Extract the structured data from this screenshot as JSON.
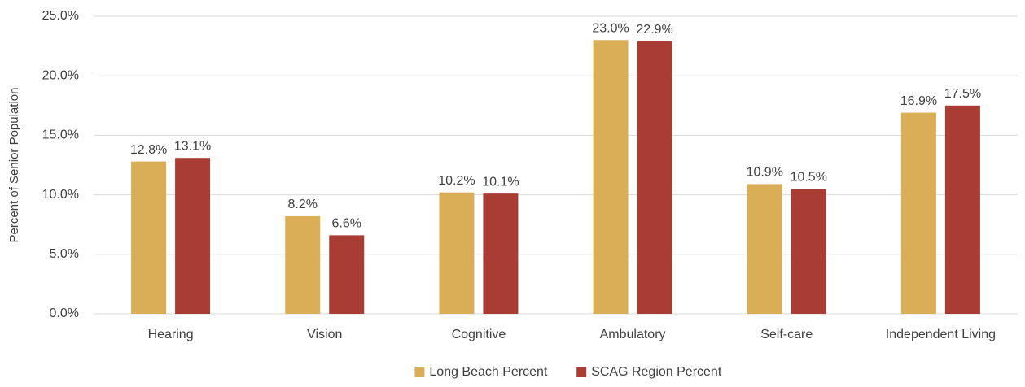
{
  "chart_data": {
    "type": "bar",
    "ylabel": "Percent of Senior Population",
    "categories": [
      "Hearing",
      "Vision",
      "Cognitive",
      "Ambulatory",
      "Self-care",
      "Independent Living"
    ],
    "series": [
      {
        "name": "Long Beach Percent",
        "color": "#d9ae57",
        "values": [
          12.8,
          8.2,
          10.2,
          23.0,
          10.9,
          16.9
        ],
        "value_labels": [
          "12.8%",
          "8.2%",
          "10.2%",
          "23.0%",
          "10.9%",
          "16.9%"
        ]
      },
      {
        "name": "SCAG Region Percent",
        "color": "#a93c33",
        "values": [
          13.1,
          6.6,
          10.1,
          22.9,
          10.5,
          17.5
        ],
        "value_labels": [
          "13.1%",
          "6.6%",
          "10.1%",
          "22.9%",
          "10.5%",
          "17.5%"
        ]
      }
    ],
    "ylim": [
      0,
      25
    ],
    "yticks": [
      {
        "value": 0,
        "label": "0.0%"
      },
      {
        "value": 5,
        "label": "5.0%"
      },
      {
        "value": 10,
        "label": "10.0%"
      },
      {
        "value": 15,
        "label": "15.0%"
      },
      {
        "value": 20,
        "label": "20.0%"
      },
      {
        "value": 25,
        "label": "25.0%"
      }
    ],
    "grid": true,
    "legend": "bottom"
  }
}
